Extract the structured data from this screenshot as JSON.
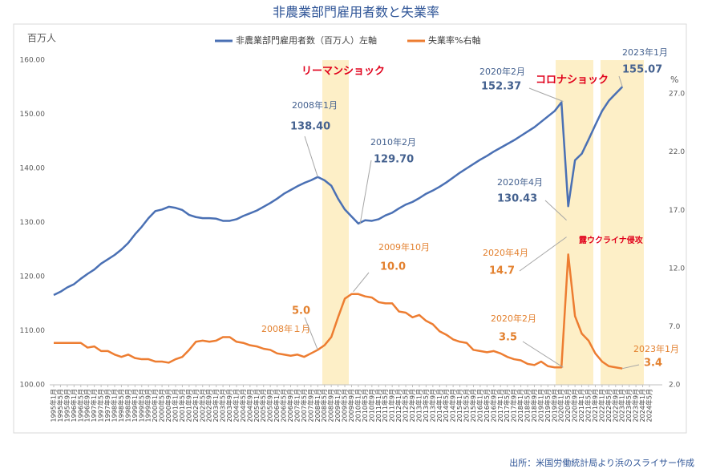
{
  "chart_data": {
    "type": "line",
    "title": "非農業部門雇用者数と失業率",
    "y_label": "百万人",
    "y2_label": "%",
    "source": "出所：米国労働統計局より浜のスライサー作成",
    "categories": [
      "1995年1月",
      "1995年5月",
      "1995年9月",
      "1996年1月",
      "1996年5月",
      "1996年9月",
      "1997年1月",
      "1997年5月",
      "1997年9月",
      "1998年1月",
      "1998年5月",
      "1998年9月",
      "1999年1月",
      "1999年5月",
      "1999年9月",
      "2000年1月",
      "2000年5月",
      "2000年9月",
      "2001年1月",
      "2001年5月",
      "2001年9月",
      "2002年1月",
      "2002年5月",
      "2002年9月",
      "2003年1月",
      "2003年5月",
      "2003年9月",
      "2004年1月",
      "2004年5月",
      "2004年9月",
      "2005年1月",
      "2005年5月",
      "2005年9月",
      "2006年1月",
      "2006年5月",
      "2006年9月",
      "2007年1月",
      "2007年5月",
      "2007年9月",
      "2008年1月",
      "2008年5月",
      "2008年9月",
      "2009年1月",
      "2009年5月",
      "2009年9月",
      "2010年1月",
      "2010年5月",
      "2010年9月",
      "2011年1月",
      "2011年5月",
      "2011年9月",
      "2012年1月",
      "2012年5月",
      "2012年9月",
      "2013年1月",
      "2013年5月",
      "2013年9月",
      "2014年1月",
      "2014年5月",
      "2014年9月",
      "2015年1月",
      "2015年5月",
      "2015年9月",
      "2016年1月",
      "2016年5月",
      "2016年9月",
      "2017年1月",
      "2017年5月",
      "2017年9月",
      "2018年1月",
      "2018年5月",
      "2018年9月",
      "2019年1月",
      "2019年5月",
      "2019年9月",
      "2020年1月",
      "2020年5月",
      "2020年9月",
      "2021年1月",
      "2021年5月",
      "2021年9月",
      "2022年1月",
      "2022年5月",
      "2022年9月",
      "2023年1月",
      "2023年5月",
      "2023年9月",
      "2024年1月",
      "2024年5月"
    ],
    "ylim": [
      100,
      160
    ],
    "yticks": [
      {
        "value": 100,
        "label": "100.00"
      },
      {
        "value": 110,
        "label": "110.00"
      },
      {
        "value": 120,
        "label": "120.00"
      },
      {
        "value": 130,
        "label": "130.00"
      },
      {
        "value": 140,
        "label": "140.00"
      },
      {
        "value": 150,
        "label": "150.00"
      },
      {
        "value": 160,
        "label": "160.00"
      }
    ],
    "y2lim": [
      2,
      29.9
    ],
    "y2ticks": [
      {
        "value": 2,
        "label": "2.0"
      },
      {
        "value": 7,
        "label": "7.0"
      },
      {
        "value": 12,
        "label": "12.0"
      },
      {
        "value": 17,
        "label": "17.0"
      },
      {
        "value": 22,
        "label": "22.0"
      },
      {
        "value": 27,
        "label": "27.0"
      }
    ],
    "grid": false,
    "series": [
      {
        "name": "非農業部門雇用者数（百万人）左軸",
        "color": "#4a70b4",
        "label_color": "#44618f",
        "values": [
          116.6,
          117.2,
          118.0,
          118.6,
          119.6,
          120.5,
          121.3,
          122.4,
          123.2,
          124.0,
          125.0,
          126.2,
          127.8,
          129.2,
          130.8,
          132.1,
          132.4,
          132.9,
          132.7,
          132.3,
          131.4,
          131.0,
          130.8,
          130.8,
          130.7,
          130.3,
          130.3,
          130.6,
          131.2,
          131.7,
          132.2,
          132.9,
          133.6,
          134.4,
          135.3,
          136.0,
          136.7,
          137.3,
          137.8,
          138.4,
          137.8,
          136.8,
          134.4,
          132.4,
          131.1,
          129.8,
          130.4,
          130.3,
          130.6,
          131.3,
          131.8,
          132.6,
          133.3,
          133.8,
          134.5,
          135.3,
          135.9,
          136.6,
          137.4,
          138.3,
          139.2,
          140.0,
          140.8,
          141.6,
          142.3,
          143.1,
          143.8,
          144.5,
          145.2,
          146.0,
          146.8,
          147.6,
          148.6,
          149.6,
          150.6,
          152.2,
          133.0,
          141.5,
          142.7,
          145.3,
          148.0,
          150.6,
          152.5,
          153.8,
          155.07,
          null,
          null,
          null,
          null
        ],
        "callouts": [
          {
            "date": "2008年1月",
            "value": 138.4,
            "label": "138.40"
          },
          {
            "date": "2010年2月",
            "value": 129.7,
            "label": "129.70"
          },
          {
            "date": "2020年2月",
            "value": 152.37
          },
          {
            "date": "2020年4月",
            "value": 130.43
          },
          {
            "date": "2023年1月",
            "value": 155.07
          }
        ]
      },
      {
        "name": "失業率%右軸",
        "color": "#ed7d31",
        "label_color": "#e3812f",
        "axis": "y2",
        "values": [
          5.6,
          5.6,
          5.6,
          5.6,
          5.6,
          5.2,
          5.3,
          4.9,
          4.9,
          4.6,
          4.4,
          4.6,
          4.3,
          4.2,
          4.2,
          4.0,
          4.0,
          3.9,
          4.2,
          4.4,
          5.0,
          5.7,
          5.8,
          5.7,
          5.8,
          6.1,
          6.1,
          5.7,
          5.6,
          5.4,
          5.3,
          5.1,
          5.0,
          4.7,
          4.6,
          4.5,
          4.6,
          4.4,
          4.7,
          5.0,
          5.4,
          6.1,
          7.8,
          9.4,
          9.8,
          9.8,
          9.6,
          9.5,
          9.1,
          9.0,
          9.0,
          8.3,
          8.2,
          7.8,
          8.0,
          7.5,
          7.2,
          6.6,
          6.3,
          5.9,
          5.7,
          5.6,
          5.0,
          4.9,
          4.8,
          4.9,
          4.7,
          4.4,
          4.2,
          4.1,
          3.8,
          3.7,
          4.0,
          3.6,
          3.5,
          3.5,
          13.2,
          7.9,
          6.4,
          5.8,
          4.7,
          4.0,
          3.6,
          3.5,
          3.4,
          null,
          null,
          null,
          null
        ],
        "callouts": [
          {
            "date": "2009年10月",
            "value": 10,
            "label": "10.0"
          },
          {
            "date": "2008年１月",
            "value": 5,
            "label": "5.0"
          },
          {
            "date": "2020年4月",
            "value": 14.7
          },
          {
            "date": "2020年2月",
            "value": 3.5
          },
          {
            "date": "2023年1月",
            "value": 3.4
          }
        ]
      }
    ],
    "annotations": [
      {
        "text": "リーマンショック",
        "color": "#e0001b"
      },
      {
        "text": "コロナショック",
        "color": "#e0001b"
      },
      {
        "text": "露ウクライナ侵攻",
        "color": "#e0001b"
      }
    ]
  }
}
